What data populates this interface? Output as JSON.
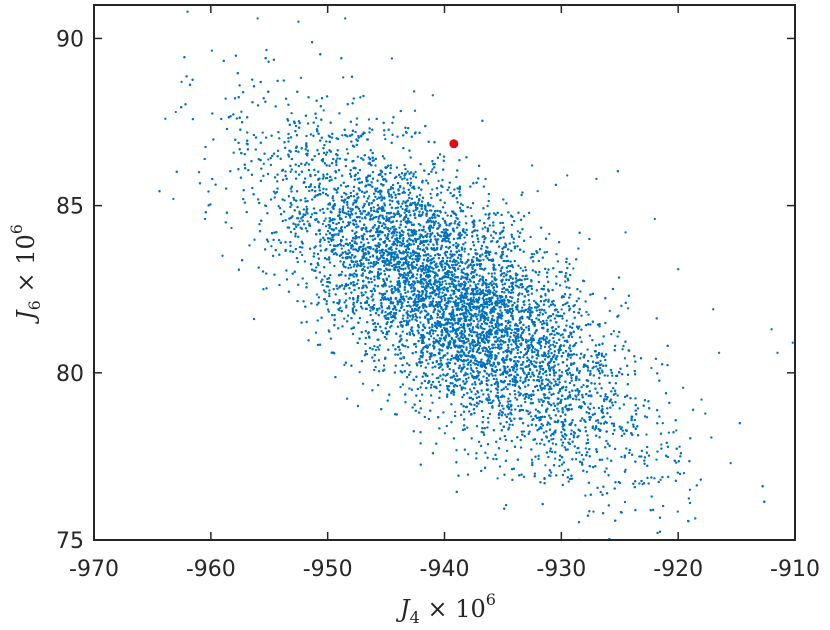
{
  "chart_data": {
    "type": "scatter",
    "title": "",
    "xlabel": {
      "base": "J",
      "sub": "4",
      "op": " × 10",
      "sup": "6"
    },
    "ylabel": {
      "base": "J",
      "sub": "6",
      "op": " × 10",
      "sup": "6"
    },
    "xlim": [
      -970,
      -910
    ],
    "ylim": [
      75,
      91
    ],
    "xticks": [
      -970,
      -960,
      -950,
      -940,
      -930,
      -920,
      -910
    ],
    "xtick_labels": [
      "-970",
      "-960",
      "-950",
      "-940",
      "-930",
      "-920",
      "-910"
    ],
    "yticks": [
      75,
      80,
      85,
      90
    ],
    "ytick_labels": [
      "75",
      "80",
      "85",
      "90"
    ],
    "grid": false,
    "legend": "none",
    "series": [
      {
        "color": "#0072BD",
        "marker": "dot",
        "approx_count": 12000,
        "distribution": {
          "type": "bivariate_normal",
          "mean": [
            -939.5,
            82.2
          ],
          "std": [
            7.5,
            2.4
          ],
          "correlation": -0.72
        },
        "points": [
          [
            -962.0,
            90.8
          ],
          [
            -963.0,
            87.8
          ],
          [
            -962.5,
            88.7
          ],
          [
            -961.0,
            86.0
          ],
          [
            -963.2,
            85.2
          ],
          [
            -956.0,
            90.6
          ],
          [
            -952.5,
            90.5
          ],
          [
            -948.5,
            90.6
          ],
          [
            -944.5,
            89.4
          ],
          [
            -941.0,
            88.3
          ],
          [
            -932.5,
            86.2
          ],
          [
            -929.5,
            85.9
          ],
          [
            -927.0,
            85.8
          ],
          [
            -924.5,
            84.2
          ],
          [
            -922.0,
            84.6
          ],
          [
            -920.0,
            83.1
          ],
          [
            -917.0,
            81.9
          ],
          [
            -916.5,
            80.6
          ],
          [
            -912.0,
            81.3
          ],
          [
            -911.5,
            80.6
          ],
          [
            -910.2,
            80.9
          ],
          [
            -915.5,
            77.3
          ],
          [
            -918.0,
            79.2
          ],
          [
            -919.5,
            77.0
          ],
          [
            -919.0,
            76.5
          ],
          [
            -921.5,
            76.8
          ],
          [
            -924.5,
            77.1
          ],
          [
            -926.5,
            77.4
          ],
          [
            -930.0,
            78.0
          ],
          [
            -935.0,
            78.8
          ],
          [
            -946.0,
            80.8
          ],
          [
            -951.0,
            81.2
          ],
          [
            -955.5,
            82.5
          ],
          [
            -959.0,
            83.5
          ],
          [
            -960.5,
            84.6
          ]
        ]
      },
      {
        "color": "#D90D1A",
        "marker": "filled-circle",
        "points": [
          [
            -939.2,
            86.85
          ]
        ]
      }
    ]
  }
}
